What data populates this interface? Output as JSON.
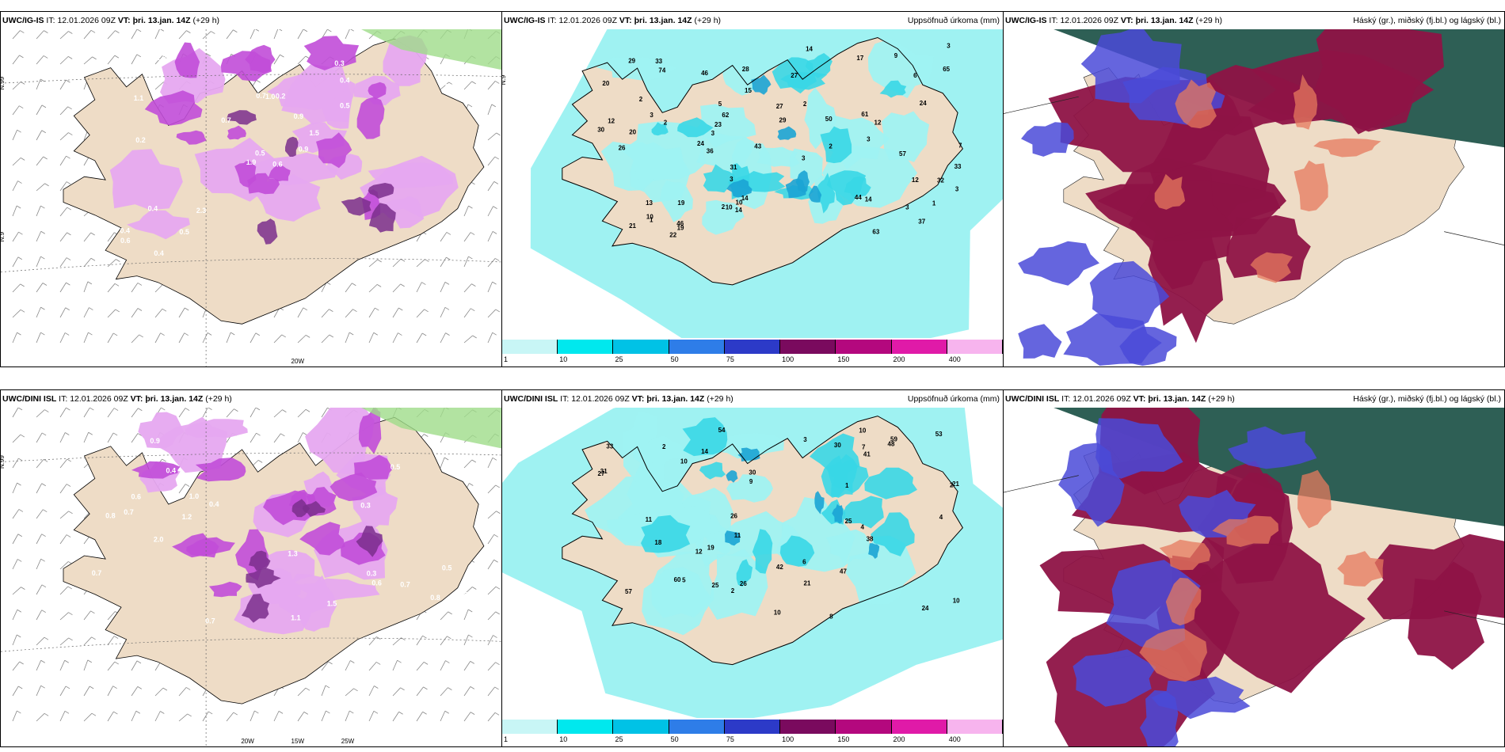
{
  "panels": [
    {
      "id": "r1c1",
      "model": "UWC/IG-IS",
      "it_label": "IT:",
      "it": "12.01.2026 09Z",
      "vt_label": "VT:",
      "vt": "þri. 13.jan. 14Z",
      "lead": "(+29 h)",
      "right_title": "",
      "labels": [
        "0.6",
        "1.1",
        "0.5",
        "0.4",
        "1.5",
        "2.3",
        "0.3",
        "0.2",
        "0.4",
        "0.9",
        "1.6",
        "0.5",
        "0.2",
        "0.6",
        "1.9",
        "0.5",
        "0.4",
        "0.7",
        "0.9",
        "0.4",
        "0.7",
        "0.6",
        "0.5",
        "1.0"
      ],
      "axis": [
        "N.99",
        "N.9",
        "20W"
      ]
    },
    {
      "id": "r1c2",
      "model": "UWC/IG-IS",
      "it_label": "IT:",
      "it": "12.01.2026 09Z",
      "vt_label": "VT:",
      "vt": "þri. 13.jan. 14Z",
      "lead": "(+29 h)",
      "right_title": "Uppsöfnuð úrkoma (mm)",
      "labels": [
        "17",
        "23",
        "14",
        "10",
        "9",
        "14",
        "57",
        "74",
        "61",
        "31",
        "63",
        "44",
        "62",
        "37",
        "30",
        "29",
        "24",
        "33",
        "65",
        "20",
        "32",
        "19",
        "12",
        "22",
        "24",
        "29",
        "13",
        "43",
        "10",
        "26",
        "20",
        "12",
        "3",
        "14",
        "12",
        "46",
        "3",
        "27",
        "2",
        "3",
        "14",
        "2",
        "28",
        "27",
        "19",
        "33",
        "50",
        "21",
        "3",
        "36",
        "46",
        "5",
        "6",
        "10",
        "15",
        "2",
        "7",
        "1",
        "3",
        "3",
        "2",
        "1",
        "3",
        "2",
        "3"
      ],
      "axis": [
        "N.9"
      ]
    },
    {
      "id": "r1c3",
      "model": "UWC/IG-IS",
      "it_label": "IT:",
      "it": "12.01.2026 09Z",
      "vt_label": "VT:",
      "vt": "þri. 13.jan. 14Z",
      "lead": "(+29 h)",
      "right_title": "Háský (gr.), miðský (fj.bl.) og lágský (bl.)",
      "labels": [],
      "axis": []
    },
    {
      "id": "r2c1",
      "model": "UWC/DINI ISL",
      "it_label": "IT:",
      "it": "12.01.2026 09Z",
      "vt_label": "VT:",
      "vt": "þri. 13.jan. 14Z",
      "lead": "(+29 h)",
      "right_title": "",
      "labels": [
        "0.9",
        "0.6",
        "0.4",
        "0.7",
        "1.0",
        "1.5",
        "2.0",
        "1.1",
        "0.7",
        "1.4",
        "0.8",
        "1.2",
        "0.5",
        "0.3",
        "0.4",
        "0.5",
        "0.7",
        "0.8",
        "0.3",
        "0.5",
        "0.7",
        "1.3",
        "0.6"
      ],
      "axis": [
        "N.99",
        "20W",
        "15W",
        "25W"
      ]
    },
    {
      "id": "r2c2",
      "model": "UWC/DINI ISL",
      "it_label": "IT:",
      "it": "12.01.2026 09Z",
      "vt_label": "VT:",
      "vt": "þri. 13.jan. 14Z",
      "lead": "(+29 h)",
      "right_title": "Uppsöfnuð úrkoma (mm)",
      "labels": [
        "11",
        "10",
        "12",
        "19",
        "10",
        "57",
        "54",
        "60",
        "24",
        "59",
        "42",
        "27",
        "33",
        "30",
        "48",
        "26",
        "31",
        "21",
        "11",
        "4",
        "47",
        "25",
        "41",
        "30",
        "25",
        "38",
        "18",
        "26",
        "14",
        "10",
        "5",
        "7",
        "2",
        "2",
        "2",
        "1",
        "3",
        "6",
        "4",
        "10",
        "8",
        "9",
        "21",
        "53"
      ],
      "axis": []
    },
    {
      "id": "r2c3",
      "model": "UWC/DINI ISL",
      "it_label": "IT:",
      "it": "12.01.2026 09Z",
      "vt_label": "VT:",
      "vt": "þri. 13.jan. 14Z",
      "lead": "(+29 h)",
      "right_title": "Háský (gr.), miðský (fj.bl.) og lágský (bl.)",
      "labels": [],
      "axis": []
    }
  ],
  "colorbar": {
    "ticks": [
      "1",
      "10",
      "25",
      "50",
      "75",
      "100",
      "150",
      "200",
      "400"
    ],
    "colors": [
      "#c8f6f6",
      "#00e8ee",
      "#00c2e6",
      "#2e7de8",
      "#2c3ac8",
      "#7a0a5e",
      "#b4087e",
      "#e01aa8",
      "#f7b4ee"
    ]
  },
  "colors": {
    "land": "#eedcc6",
    "precip_light": "#9ff2f2",
    "precip_mid": "#39d7e6",
    "precip_dark": "#1ba4d4",
    "snow1": "#e6a8f0",
    "snow2": "#c14dd8",
    "snow3": "#7a2e8c",
    "cloud_high": "#2e5f55",
    "cloud_mid": "#8e1346",
    "cloud_low": "#4a4ad8",
    "cloud_orange": "#e5795d"
  }
}
